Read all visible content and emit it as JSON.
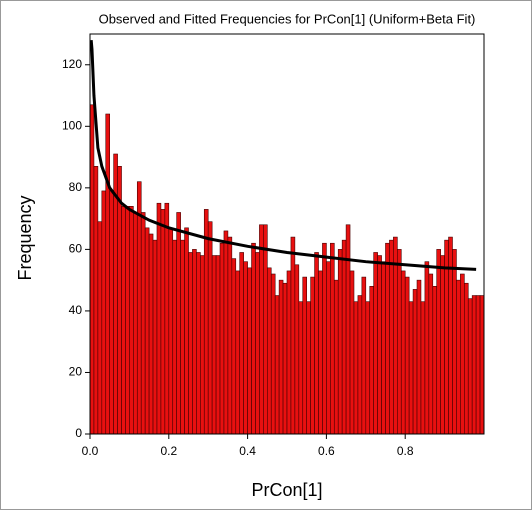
{
  "chart_data": {
    "type": "histogram",
    "title": "Observed and Fitted Frequencies for PrCon[1] (Uniform+Beta Fit)",
    "xlabel": "PrCon[1]",
    "ylabel": "Frequency",
    "bins": [
      0,
      0.01,
      0.02,
      0.03,
      0.04,
      0.05,
      0.06,
      0.07,
      0.08,
      0.09,
      0.1,
      0.11,
      0.12,
      0.13,
      0.14,
      0.15,
      0.16,
      0.17,
      0.18,
      0.19,
      0.2,
      0.21,
      0.22,
      0.23,
      0.24,
      0.25,
      0.26,
      0.27,
      0.28,
      0.29,
      0.3,
      0.31,
      0.32,
      0.33,
      0.34,
      0.35,
      0.36,
      0.37,
      0.38,
      0.39,
      0.4,
      0.41,
      0.42,
      0.43,
      0.44,
      0.45,
      0.46,
      0.47,
      0.48,
      0.49,
      0.5,
      0.51,
      0.52,
      0.53,
      0.54,
      0.55,
      0.56,
      0.57,
      0.58,
      0.59,
      0.6,
      0.61,
      0.62,
      0.63,
      0.64,
      0.65,
      0.66,
      0.67,
      0.68,
      0.69,
      0.7,
      0.71,
      0.72,
      0.73,
      0.74,
      0.75,
      0.76,
      0.77,
      0.78,
      0.79,
      0.8,
      0.81,
      0.82,
      0.83,
      0.84,
      0.85,
      0.86,
      0.87,
      0.88,
      0.89,
      0.9,
      0.91,
      0.92,
      0.93,
      0.94,
      0.95,
      0.96,
      0.97,
      0.98,
      0.99,
      1
    ],
    "counts": [
      107,
      87,
      69,
      79,
      104,
      79,
      91,
      87,
      74,
      74,
      74,
      72,
      82,
      72,
      67,
      65,
      63,
      75,
      73,
      75,
      67,
      63,
      72,
      63,
      67,
      59,
      60,
      59,
      58,
      73,
      69,
      58,
      58,
      62,
      66,
      64,
      57,
      53,
      59,
      56,
      54,
      62,
      59,
      68,
      68,
      54,
      52,
      45,
      50,
      49,
      53,
      64,
      55,
      43,
      51,
      43,
      51,
      59,
      53,
      62,
      56,
      62,
      50,
      60,
      63,
      68,
      53,
      43,
      45,
      51,
      43,
      48,
      59,
      58,
      56,
      62,
      63,
      64,
      60,
      53,
      51,
      43,
      47,
      50,
      43,
      56,
      52,
      48,
      60,
      58,
      63,
      64,
      60,
      50,
      52,
      49,
      44,
      45,
      45,
      45
    ],
    "color": "#e81010",
    "fit": {
      "x": [
        0.003,
        0.005,
        0.01,
        0.02,
        0.03,
        0.05,
        0.08,
        0.1,
        0.15,
        0.2,
        0.3,
        0.4,
        0.5,
        0.6,
        0.7,
        0.8,
        0.9,
        0.98
      ],
      "values": [
        128,
        125,
        110,
        93,
        87,
        80,
        75,
        73,
        69.5,
        67,
        63.5,
        61,
        59,
        57.5,
        56,
        55,
        54,
        53.5
      ],
      "color": "#000000"
    },
    "xlim": [
      0,
      1
    ],
    "ylim": [
      0,
      130
    ],
    "xticks": [
      {
        "value": 0,
        "label": "0.0"
      },
      0.2,
      0.4,
      0.6,
      0.8
    ],
    "yticks": [
      0,
      20,
      40,
      60,
      80,
      100,
      120
    ]
  }
}
